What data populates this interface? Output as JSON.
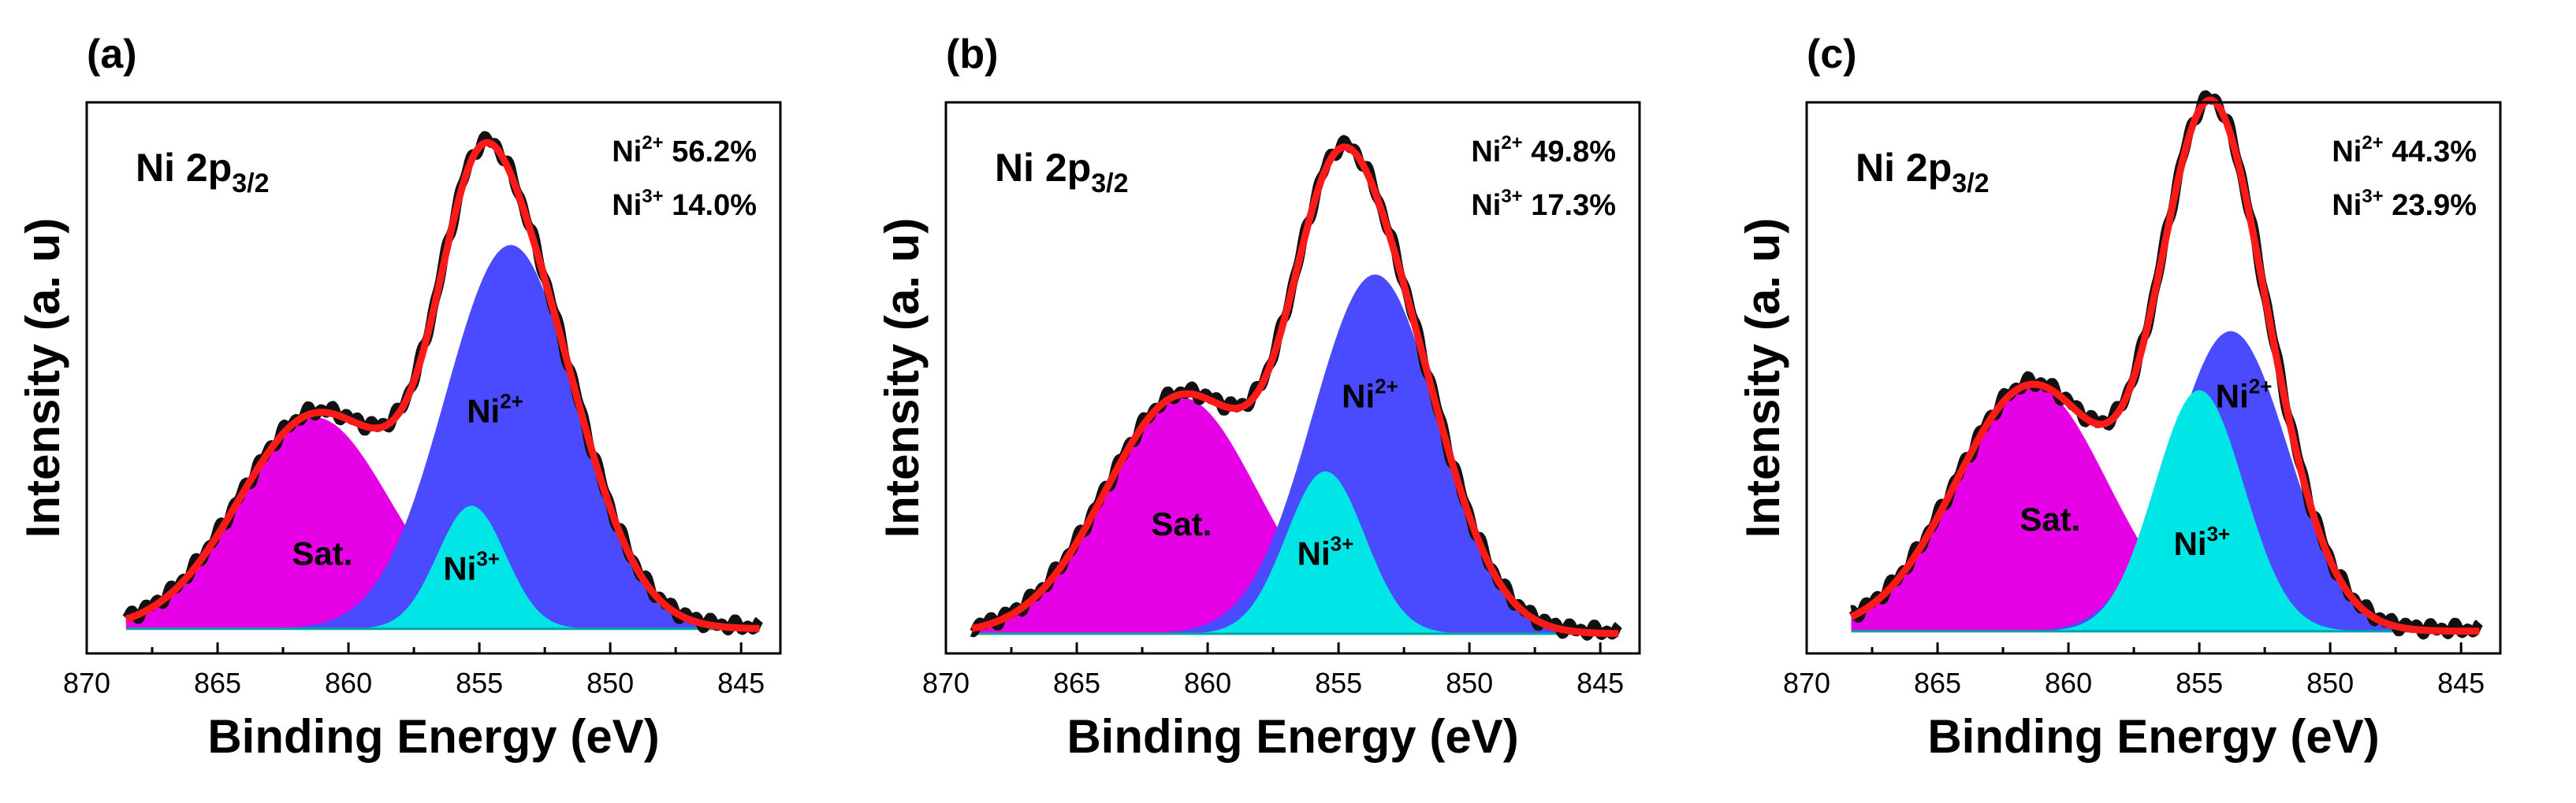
{
  "chart_data": [
    {
      "panel": "(a)",
      "type": "line",
      "title": "Ni 2p3/2",
      "title_main": "Ni 2p",
      "title_sub": "3/2",
      "xlabel": "Binding Energy (eV)",
      "ylabel": "Intensity (a. u)",
      "xlim": [
        870,
        843.5
      ],
      "ylim": [
        0,
        1.12
      ],
      "xticks": [
        870,
        865,
        860,
        855,
        850,
        845
      ],
      "x_range": [
        868.5,
        844.3
      ],
      "baseline": 0.05,
      "percentages": [
        {
          "species": "Ni",
          "charge": "2+",
          "value": "56.2%"
        },
        {
          "species": "Ni",
          "charge": "3+",
          "value": "14.0%"
        }
      ],
      "components": [
        {
          "name": "Sat.",
          "color": "#e600e6",
          "center": 861.3,
          "height": 0.43,
          "sigma": 2.9,
          "label_x": 861.0,
          "label_y": 0.18
        },
        {
          "name": "Ni",
          "charge": "2+",
          "color": "#4a4aff",
          "center": 853.8,
          "height": 0.78,
          "sigma": 2.5,
          "label_x": 854.4,
          "label_y": 0.47
        },
        {
          "name": "Ni",
          "charge": "3+",
          "color": "#00e5e5",
          "center": 855.3,
          "height": 0.25,
          "sigma": 1.3,
          "label_x": 855.3,
          "label_y": 0.15
        }
      ],
      "envelope_color": "#ff1a1a",
      "raw_color": "#111111"
    },
    {
      "panel": "(b)",
      "type": "line",
      "title": "Ni 2p3/2",
      "title_main": "Ni 2p",
      "title_sub": "3/2",
      "xlabel": "Binding Energy (eV)",
      "ylabel": "Intensity (a. u)",
      "xlim": [
        870,
        843.5
      ],
      "ylim": [
        0,
        1.12
      ],
      "xticks": [
        870,
        865,
        860,
        855,
        850,
        845
      ],
      "x_range": [
        869.0,
        844.3
      ],
      "baseline": 0.04,
      "percentages": [
        {
          "species": "Ni",
          "charge": "2+",
          "value": "49.8%"
        },
        {
          "species": "Ni",
          "charge": "3+",
          "value": "17.3%"
        }
      ],
      "components": [
        {
          "name": "Sat.",
          "color": "#e600e6",
          "center": 861.0,
          "height": 0.48,
          "sigma": 2.9,
          "label_x": 861.0,
          "label_y": 0.24
        },
        {
          "name": "Ni",
          "charge": "2+",
          "color": "#4a4aff",
          "center": 853.6,
          "height": 0.73,
          "sigma": 2.4,
          "label_x": 853.8,
          "label_y": 0.5
        },
        {
          "name": "Ni",
          "charge": "3+",
          "color": "#00e5e5",
          "center": 855.5,
          "height": 0.33,
          "sigma": 1.5,
          "label_x": 855.5,
          "label_y": 0.18
        }
      ],
      "envelope_color": "#ff1a1a",
      "raw_color": "#111111"
    },
    {
      "panel": "(c)",
      "type": "line",
      "title": "Ni 2p3/2",
      "title_main": "Ni 2p",
      "title_sub": "3/2",
      "xlabel": "Binding Energy (eV)",
      "ylabel": "Intensity (a. u)",
      "xlim": [
        870,
        843.5
      ],
      "ylim": [
        0,
        1.12
      ],
      "xticks": [
        870,
        865,
        860,
        855,
        850,
        845
      ],
      "x_range": [
        868.3,
        844.3
      ],
      "baseline": 0.045,
      "percentages": [
        {
          "species": "Ni",
          "charge": "2+",
          "value": "44.3%"
        },
        {
          "species": "Ni",
          "charge": "3+",
          "value": "23.9%"
        }
      ],
      "components": [
        {
          "name": "Sat.",
          "color": "#e600e6",
          "center": 861.4,
          "height": 0.5,
          "sigma": 2.9,
          "label_x": 860.7,
          "label_y": 0.25
        },
        {
          "name": "Ni",
          "charge": "2+",
          "color": "#4a4aff",
          "center": 853.8,
          "height": 0.61,
          "sigma": 2.2,
          "label_x": 853.3,
          "label_y": 0.5
        },
        {
          "name": "Ni",
          "charge": "3+",
          "color": "#00e5e5",
          "center": 855.0,
          "height": 0.49,
          "sigma": 1.7,
          "label_x": 854.9,
          "label_y": 0.2
        }
      ],
      "envelope_color": "#ff1a1a",
      "raw_color": "#111111"
    }
  ]
}
